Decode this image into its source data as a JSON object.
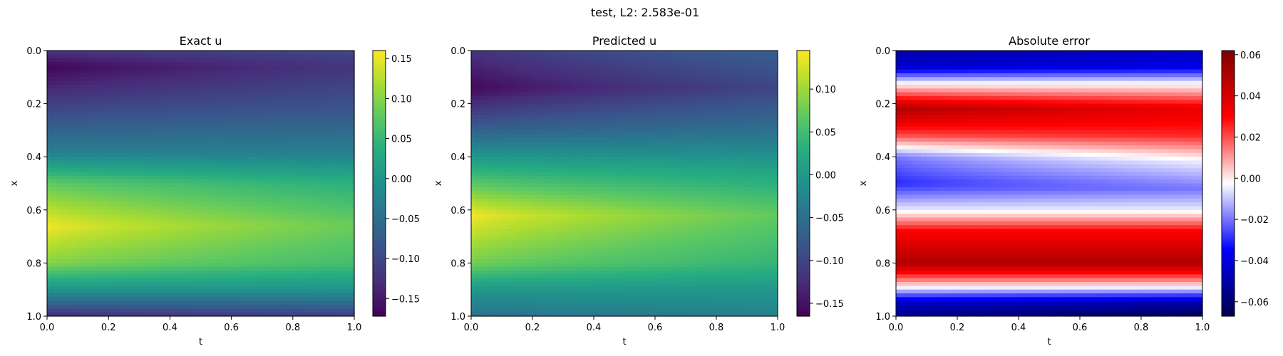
{
  "suptitle": "test, L2: 2.583e-01",
  "chart_data": [
    {
      "type": "heatmap",
      "title": "Exact u",
      "xlabel": "t",
      "ylabel": "x",
      "xlim": [
        0,
        1
      ],
      "ylim": [
        1,
        0
      ],
      "xticks": [
        "0.0",
        "0.2",
        "0.4",
        "0.6",
        "0.8",
        "1.0"
      ],
      "yticks": [
        "0.0",
        "0.2",
        "0.4",
        "0.6",
        "0.8",
        "1.0"
      ],
      "colormap": "viridis",
      "clim": [
        -0.172,
        0.16
      ],
      "colorbar_ticks": [
        "−0.15",
        "−0.10",
        "−0.05",
        "0.00",
        "0.05",
        "0.10",
        "0.15"
      ],
      "profile_t0": [
        [
          0.0,
          -0.12
        ],
        [
          0.06,
          -0.17
        ],
        [
          0.2,
          -0.11
        ],
        [
          0.38,
          -0.03
        ],
        [
          0.5,
          0.08
        ],
        [
          0.66,
          0.155
        ],
        [
          0.8,
          0.1
        ],
        [
          0.9,
          0.0
        ],
        [
          1.0,
          -0.13
        ]
      ],
      "profile_t1": [
        [
          0.0,
          -0.1
        ],
        [
          0.06,
          -0.12
        ],
        [
          0.2,
          -0.09
        ],
        [
          0.38,
          -0.03
        ],
        [
          0.5,
          0.04
        ],
        [
          0.66,
          0.085
        ],
        [
          0.8,
          0.06
        ],
        [
          0.9,
          0.0
        ],
        [
          1.0,
          -0.11
        ]
      ]
    },
    {
      "type": "heatmap",
      "title": "Predicted u",
      "xlabel": "t",
      "ylabel": "x",
      "xlim": [
        0,
        1
      ],
      "ylim": [
        1,
        0
      ],
      "xticks": [
        "0.0",
        "0.2",
        "0.4",
        "0.6",
        "0.8",
        "1.0"
      ],
      "yticks": [
        "0.0",
        "0.2",
        "0.4",
        "0.6",
        "0.8",
        "1.0"
      ],
      "colormap": "viridis",
      "clim": [
        -0.165,
        0.145
      ],
      "colorbar_ticks": [
        "−0.15",
        "−0.10",
        "−0.05",
        "0.00",
        "0.05",
        "0.10"
      ],
      "profile_t0": [
        [
          0.0,
          -0.12
        ],
        [
          0.14,
          -0.16
        ],
        [
          0.3,
          -0.07
        ],
        [
          0.46,
          0.04
        ],
        [
          0.62,
          0.14
        ],
        [
          0.8,
          0.08
        ],
        [
          0.9,
          0.0
        ],
        [
          1.0,
          -0.05
        ]
      ],
      "profile_t1": [
        [
          0.0,
          -0.07
        ],
        [
          0.14,
          -0.1
        ],
        [
          0.3,
          -0.05
        ],
        [
          0.46,
          0.02
        ],
        [
          0.62,
          0.07
        ],
        [
          0.8,
          0.04
        ],
        [
          0.9,
          0.0
        ],
        [
          1.0,
          -0.03
        ]
      ]
    },
    {
      "type": "heatmap",
      "title": "Absolute error",
      "xlabel": "t",
      "ylabel": "x",
      "xlim": [
        0,
        1
      ],
      "ylim": [
        1,
        0
      ],
      "xticks": [
        "0.0",
        "0.2",
        "0.4",
        "0.6",
        "0.8",
        "1.0"
      ],
      "yticks": [
        "0.0",
        "0.2",
        "0.4",
        "0.6",
        "0.8",
        "1.0"
      ],
      "colormap": "seismic",
      "clim": [
        -0.067,
        0.062
      ],
      "colorbar_ticks": [
        "−0.06",
        "−0.04",
        "−0.02",
        "0.00",
        "0.02",
        "0.04",
        "0.06"
      ],
      "profile_t0": [
        [
          0.0,
          -0.05
        ],
        [
          0.06,
          -0.045
        ],
        [
          0.12,
          -0.005
        ],
        [
          0.22,
          0.05
        ],
        [
          0.32,
          0.02
        ],
        [
          0.4,
          -0.02
        ],
        [
          0.5,
          -0.03
        ],
        [
          0.6,
          -0.005
        ],
        [
          0.68,
          0.03
        ],
        [
          0.8,
          0.05
        ],
        [
          0.88,
          0.005
        ],
        [
          0.95,
          -0.045
        ],
        [
          1.0,
          -0.055
        ]
      ],
      "profile_t1": [
        [
          0.0,
          -0.045
        ],
        [
          0.06,
          -0.04
        ],
        [
          0.12,
          -0.005
        ],
        [
          0.22,
          0.035
        ],
        [
          0.32,
          0.025
        ],
        [
          0.42,
          -0.005
        ],
        [
          0.52,
          -0.02
        ],
        [
          0.6,
          -0.005
        ],
        [
          0.68,
          0.03
        ],
        [
          0.8,
          0.05
        ],
        [
          0.88,
          0.005
        ],
        [
          0.95,
          -0.05
        ],
        [
          1.0,
          -0.065
        ]
      ]
    }
  ]
}
